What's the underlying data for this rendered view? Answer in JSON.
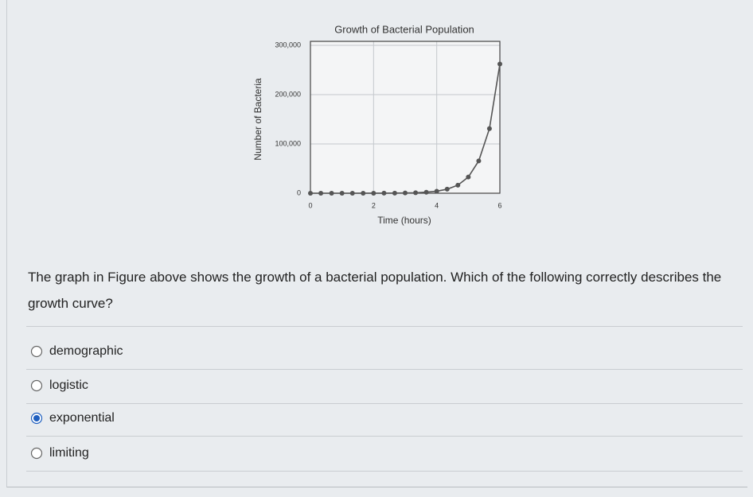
{
  "chart_data": {
    "type": "line",
    "title": "Growth of Bacterial Population",
    "x_label": "Time (hours)",
    "y_label": "Number of Bacteria",
    "x": [
      0,
      0.33,
      0.67,
      1,
      1.33,
      1.67,
      2,
      2.33,
      2.67,
      3,
      3.33,
      3.67,
      4,
      4.33,
      4.67,
      5,
      5.33,
      5.67,
      6
    ],
    "series": [
      {
        "name": "Bacteria",
        "color": "#555555",
        "values": [
          1,
          2,
          4,
          8,
          16,
          32,
          64,
          128,
          256,
          512,
          1024,
          2048,
          4096,
          8192,
          16384,
          32768,
          65536,
          131072,
          262144
        ]
      }
    ],
    "xlim": [
      0,
      6
    ],
    "xticks": [
      0,
      2,
      4,
      6
    ],
    "ylim": [
      0,
      300000
    ],
    "yticks": [
      0,
      {
        "value": 100000,
        "label": "100,000"
      },
      {
        "value": 200000,
        "label": "200,000"
      },
      {
        "value": 300000,
        "label": "300,000"
      }
    ],
    "grid": true
  },
  "question": {
    "text": "The graph in Figure above shows the growth of a bacterial population. Which of the following correctly describes the growth curve?"
  },
  "options": [
    {
      "label": "demographic",
      "selected": false
    },
    {
      "label": "logistic",
      "selected": false
    },
    {
      "label": "exponential",
      "selected": true
    },
    {
      "label": "limiting",
      "selected": false
    }
  ]
}
